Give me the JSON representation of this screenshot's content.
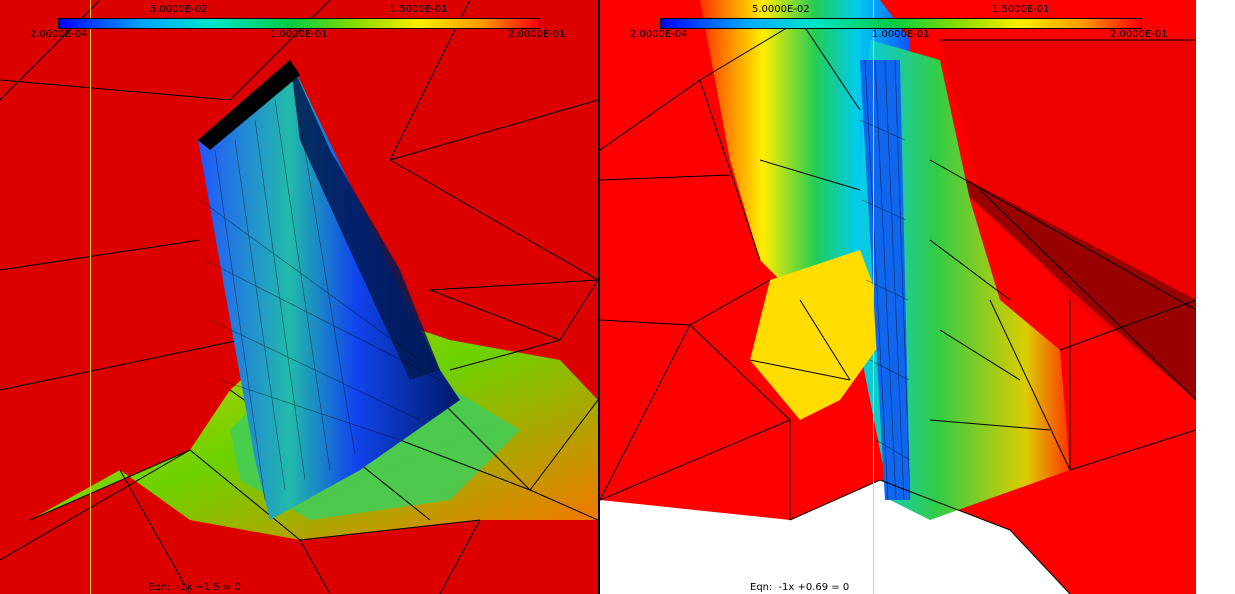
{
  "colorbar": {
    "top_labels": [
      "5.0000E-02",
      "1.5000E-01"
    ],
    "bottom_labels": [
      "2.0000E-04",
      "1.0000E-01",
      "2.0000E-01"
    ],
    "min": "2.0000E-04",
    "max": "2.0000E-01"
  },
  "views": [
    {
      "name": "left",
      "equation_key": "Eqn:",
      "equation": "-1x +1.5 = 0"
    },
    {
      "name": "right",
      "equation_key": "Eqn:",
      "equation": "-1x +0.69 = 0"
    }
  ],
  "colors": {
    "background_red": "#ff0000",
    "plane_line": "#ffcc33",
    "mesh_lines": "#000000"
  }
}
